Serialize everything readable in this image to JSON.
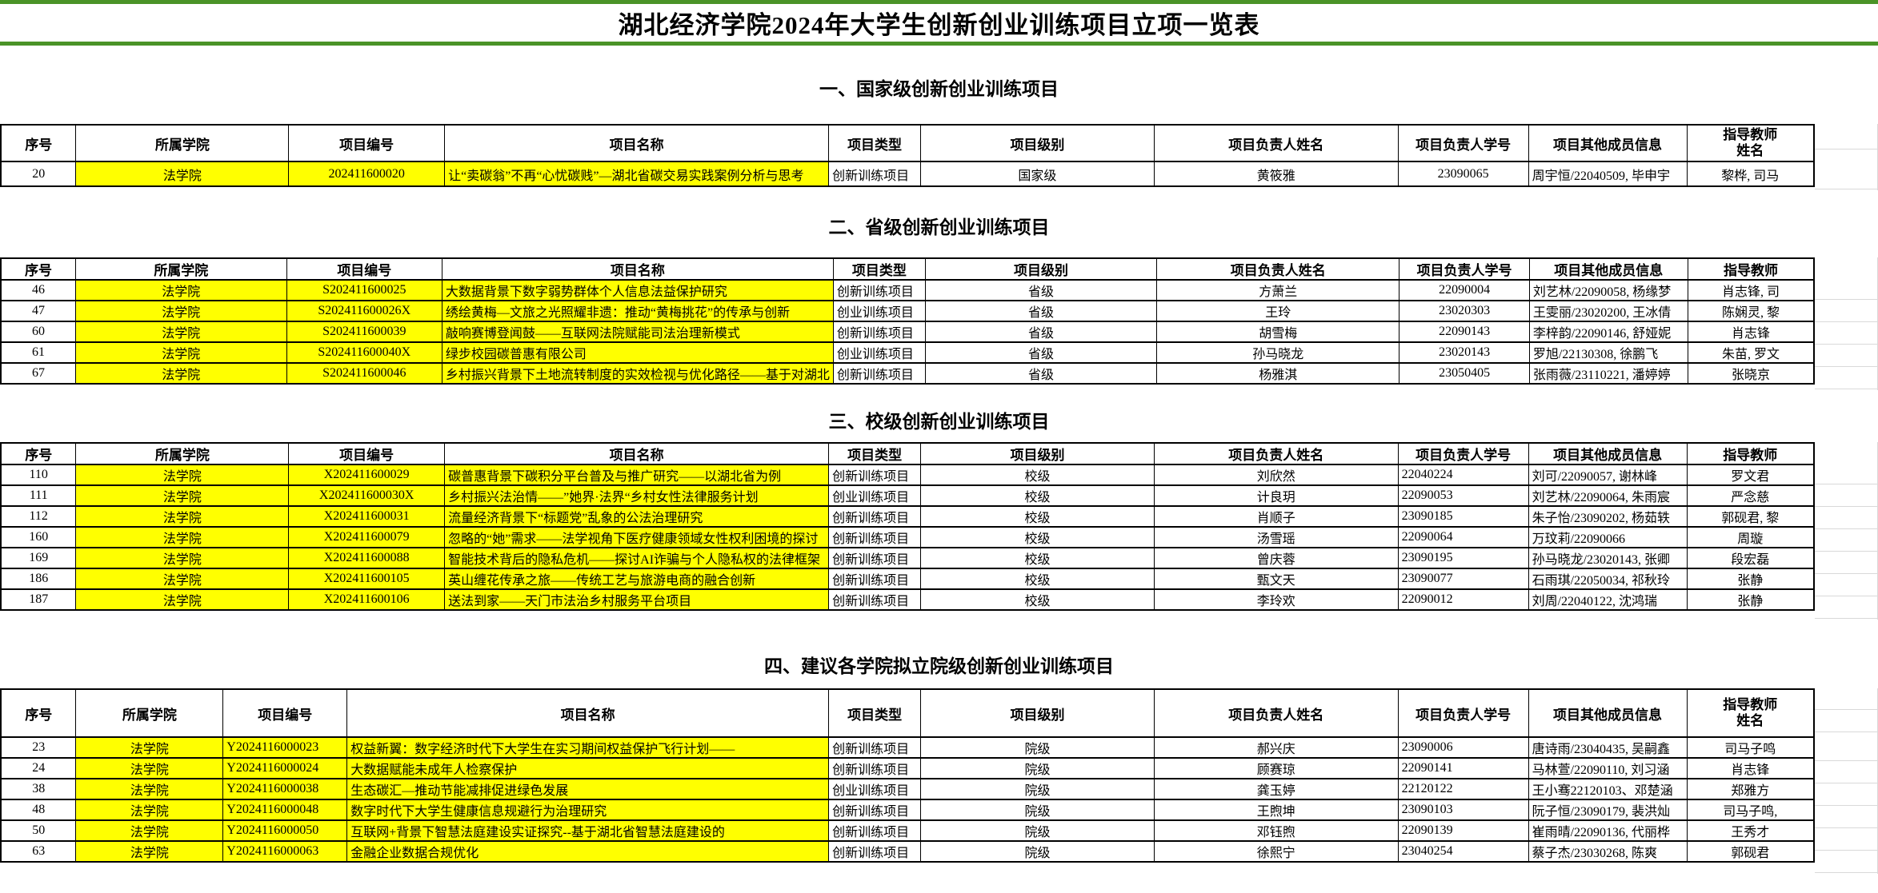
{
  "title": "湖北经济学院2024年大学生创新创业训练项目立项一览表",
  "colors": {
    "highlight": "#FFFF00",
    "title_border": "#4a9327",
    "comment_marker": "#1e9622"
  },
  "comment_marker": {
    "section": 3,
    "row": 1,
    "col": 9
  },
  "sections": [
    {
      "heading": "一、国家级创新创业训练项目",
      "headers": [
        "序号",
        "所属学院",
        "项目编号",
        "项目名称",
        "项目类型",
        "项目级别",
        "项目负责人姓名",
        "项目负责人学号",
        "项目其他成员信息",
        "指导教师姓名"
      ],
      "rows": [
        [
          "20",
          "法学院",
          "202411600020",
          "让“卖碳翁”不再“心忧碳贱”—湖北省碳交易实践案例分析与思考",
          "创新训练项目",
          "国家级",
          "黄筱雅",
          "23090065",
          "周宇恒/22040509, 毕申宇",
          "黎桦, 司马"
        ]
      ]
    },
    {
      "heading": "二、省级创新创业训练项目",
      "headers": [
        "序号",
        "所属学院",
        "项目编号",
        "项目名称",
        "项目类型",
        "项目级别",
        "项目负责人姓名",
        "项目负责人学号",
        "项目其他成员信息",
        "指导教师"
      ],
      "rows": [
        [
          "46",
          "法学院",
          "S202411600025",
          "大数据背景下数字弱势群体个人信息法益保护研究",
          "创新训练项目",
          "省级",
          "方萧兰",
          "22090004",
          "刘艺林/22090058, 杨缘梦",
          "肖志锋, 司"
        ],
        [
          "47",
          "法学院",
          "S202411600026X",
          "绣绘黄梅—文旅之光照耀非遗：推动“黄梅挑花”的传承与创新",
          "创业训练项目",
          "省级",
          "王玲",
          "23020303",
          "王雯丽/23020200, 王冰倩",
          "陈娴灵, 黎"
        ],
        [
          "60",
          "法学院",
          "S202411600039",
          "敲响赛博登闻鼓——互联网法院赋能司法治理新模式",
          "创新训练项目",
          "省级",
          "胡雪梅",
          "22090143",
          "李梓韵/22090146, 舒娅妮",
          "肖志锋"
        ],
        [
          "61",
          "法学院",
          "S202411600040X",
          "绿步校园碳普惠有限公司",
          "创业训练项目",
          "省级",
          "孙马晓龙",
          "23020143",
          "罗旭/22130308, 徐鹏飞",
          "朱苗, 罗文"
        ],
        [
          "67",
          "法学院",
          "S202411600046",
          "乡村振兴背景下土地流转制度的实效检视与优化路径——基于对湖北",
          "创新训练项目",
          "省级",
          "杨雅淇",
          "23050405",
          "张雨薇/23110221, 潘婷婷",
          "张晓京"
        ]
      ]
    },
    {
      "heading": "三、校级创新创业训练项目",
      "headers": [
        "序号",
        "所属学院",
        "项目编号",
        "项目名称",
        "项目类型",
        "项目级别",
        "项目负责人姓名",
        "项目负责人学号",
        "项目其他成员信息",
        "指导教师"
      ],
      "rows": [
        [
          "110",
          "法学院",
          "X202411600029",
          "碳普惠背景下碳积分平台普及与推广研究——以湖北省为例",
          "创新训练项目",
          "校级",
          "刘欣然",
          "22040224",
          "刘可/22090057, 谢林峰",
          "罗文君"
        ],
        [
          "111",
          "法学院",
          "X202411600030X",
          "乡村振兴法治情——”她界·法界“乡村女性法律服务计划",
          "创业训练项目",
          "校级",
          "计良玥",
          "22090053",
          "刘艺林/22090064, 朱雨宸",
          "严念慈"
        ],
        [
          "112",
          "法学院",
          "X202411600031",
          "流量经济背景下“标题党”乱象的公法治理研究",
          "创新训练项目",
          "校级",
          "肖顺子",
          "23090185",
          "朱子怡/23090202, 杨茹轶",
          "郭砚君, 黎"
        ],
        [
          "160",
          "法学院",
          "X202411600079",
          "忽略的“她”需求——法学视角下医疗健康领域女性权利困境的探讨",
          "创新训练项目",
          "校级",
          "汤雪瑶",
          "22090064",
          "万玟莉/22090066",
          "周璇"
        ],
        [
          "169",
          "法学院",
          "X202411600088",
          "智能技术背后的隐私危机——探讨AI诈骗与个人隐私权的法律框架",
          "创新训练项目",
          "校级",
          "曾庆蓉",
          "23090195",
          "孙马晓龙/23020143, 张卿",
          "段宏磊"
        ],
        [
          "186",
          "法学院",
          "X202411600105",
          "英山缠花传承之旅——传统工艺与旅游电商的融合创新",
          "创新训练项目",
          "校级",
          "甄文天",
          "23090077",
          "石雨琪/22050034, 祁秋玲",
          "张静"
        ],
        [
          "187",
          "法学院",
          "X202411600106",
          "送法到家——天门市法治乡村服务平台项目",
          "创新训练项目",
          "校级",
          "李玲欢",
          "22090012",
          "刘周/22040122, 沈鸿瑞",
          "张静"
        ]
      ]
    },
    {
      "heading": "四、建议各学院拟立院级创新创业训练项目",
      "headers": [
        "序号",
        "所属学院",
        "项目编号",
        "项目名称",
        "项目类型",
        "项目级别",
        "项目负责人姓名",
        "项目负责人学号",
        "项目其他成员信息",
        "指导教师姓名"
      ],
      "rows": [
        [
          "23",
          "法学院",
          "Y2024116000023",
          "权益新翼：数字经济时代下大学生在实习期间权益保护飞行计划——",
          "创新训练项目",
          "院级",
          "郝兴庆",
          "23090006",
          "唐诗雨/23040435, 吴嗣鑫",
          "司马子鸣"
        ],
        [
          "24",
          "法学院",
          "Y2024116000024",
          "大数据赋能未成年人检察保护",
          "创新训练项目",
          "院级",
          "顾赛琼",
          "22090141",
          "马林萱/22090110, 刘习涵",
          "肖志锋"
        ],
        [
          "38",
          "法学院",
          "Y2024116000038",
          "生态碳汇—推动节能减排促进绿色发展",
          "创业训练项目",
          "院级",
          "龚玉婷",
          "22120122",
          "王小骞22120103、邓楚涵",
          "郑雅方"
        ],
        [
          "48",
          "法学院",
          "Y2024116000048",
          "数字时代下大学生健康信息规避行为治理研究",
          "创新训练项目",
          "院级",
          "王煦坤",
          "23090103",
          "阮子恒/23090179, 裴洪灿",
          "司马子鸣,"
        ],
        [
          "50",
          "法学院",
          "Y2024116000050",
          "互联网+背景下智慧法庭建设实证探究--基于湖北省智慧法庭建设的",
          "创新训练项目",
          "院级",
          "邓钰煦",
          "22090139",
          "崔雨晴/22090136, 代丽桦",
          "王秀才"
        ],
        [
          "63",
          "法学院",
          "Y2024116000063",
          "金融企业数据合规优化",
          "创新训练项目",
          "院级",
          "徐熙宁",
          "23040254",
          "蔡子杰/23030268, 陈爽",
          "郭砚君"
        ]
      ]
    }
  ]
}
